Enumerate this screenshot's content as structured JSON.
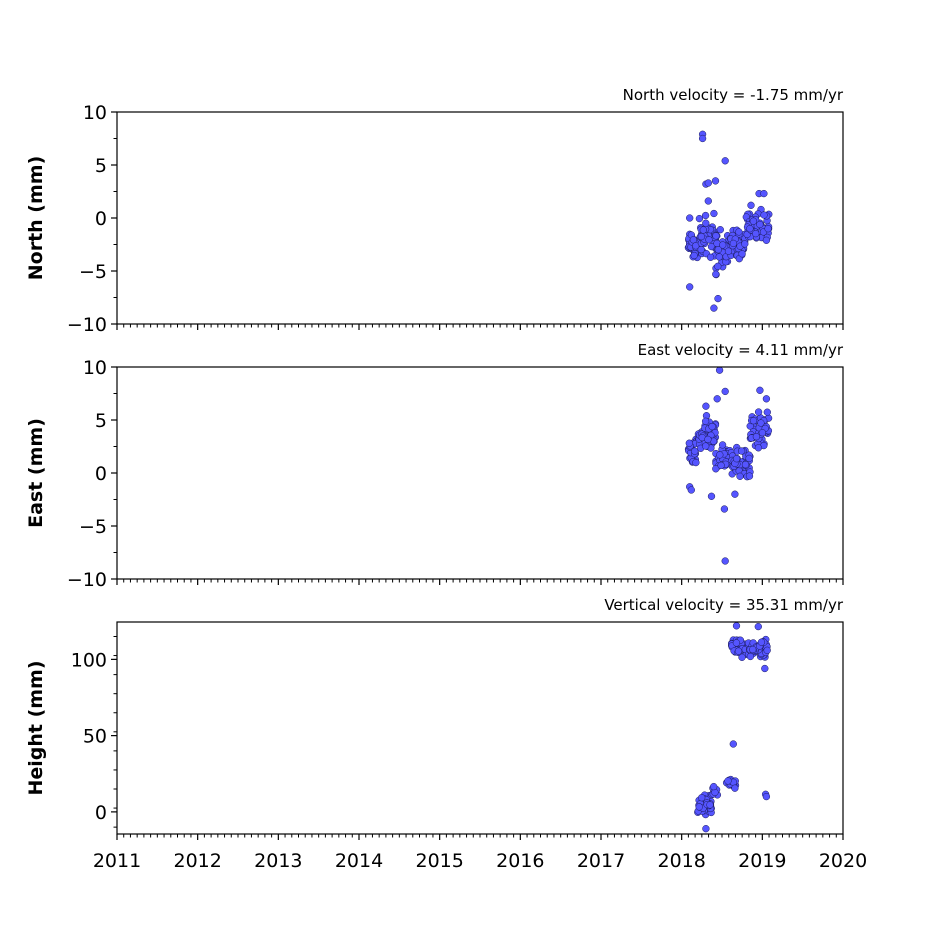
{
  "chart_data": [
    {
      "type": "scatter",
      "title": "North velocity = -1.75 mm/yr",
      "ylabel": "North (mm)",
      "xlim": [
        2011,
        2020
      ],
      "ylim": [
        -10,
        10
      ],
      "yticks": [
        -10,
        -5,
        0,
        5,
        10
      ],
      "ytick_labels": [
        "−10",
        "−5",
        "0",
        "5",
        "10"
      ],
      "marker_color": "#5555ff",
      "clusters": [
        {
          "x_range": [
            2018.08,
            2018.22
          ],
          "y_center": -2.6,
          "y_spread": 1.3,
          "count": 30
        },
        {
          "x_range": [
            2018.22,
            2018.42
          ],
          "y_center": -1.8,
          "y_spread": 1.8,
          "count": 50
        },
        {
          "x_range": [
            2018.42,
            2018.58
          ],
          "y_center": -3.2,
          "y_spread": 1.9,
          "count": 35
        },
        {
          "x_range": [
            2018.58,
            2018.8
          ],
          "y_center": -2.5,
          "y_spread": 1.2,
          "count": 45
        },
        {
          "x_range": [
            2018.8,
            2019.08
          ],
          "y_center": -0.8,
          "y_spread": 1.2,
          "count": 60
        }
      ],
      "points": [
        {
          "x": 2018.26,
          "y": 7.9
        },
        {
          "x": 2018.26,
          "y": 7.5
        },
        {
          "x": 2018.54,
          "y": 5.4
        },
        {
          "x": 2018.42,
          "y": 3.5
        },
        {
          "x": 2018.3,
          "y": 3.2
        },
        {
          "x": 2018.33,
          "y": 3.3
        },
        {
          "x": 2018.33,
          "y": 1.6
        },
        {
          "x": 2018.1,
          "y": -6.5
        },
        {
          "x": 2018.45,
          "y": -7.6
        },
        {
          "x": 2018.4,
          "y": -8.5
        },
        {
          "x": 2018.1,
          "y": 0.0
        },
        {
          "x": 2018.96,
          "y": 2.3
        },
        {
          "x": 2019.02,
          "y": 2.3
        },
        {
          "x": 2018.86,
          "y": 1.2
        },
        {
          "x": 2019.05,
          "y": -2.1
        }
      ]
    },
    {
      "type": "scatter",
      "title": "East velocity = 4.11 mm/yr",
      "ylabel": "East (mm)",
      "xlim": [
        2011,
        2020
      ],
      "ylim": [
        -10,
        10
      ],
      "yticks": [
        -10,
        -5,
        0,
        5,
        10
      ],
      "ytick_labels": [
        "−10",
        "−5",
        "0",
        "5",
        "10"
      ],
      "marker_color": "#5555ff",
      "clusters": [
        {
          "x_range": [
            2018.08,
            2018.2
          ],
          "y_center": 1.8,
          "y_spread": 1.2,
          "count": 25
        },
        {
          "x_range": [
            2018.2,
            2018.42
          ],
          "y_center": 3.6,
          "y_spread": 1.3,
          "count": 55
        },
        {
          "x_range": [
            2018.42,
            2018.62
          ],
          "y_center": 1.3,
          "y_spread": 1.1,
          "count": 40
        },
        {
          "x_range": [
            2018.62,
            2018.85
          ],
          "y_center": 0.9,
          "y_spread": 1.1,
          "count": 45
        },
        {
          "x_range": [
            2018.85,
            2019.08
          ],
          "y_center": 4.1,
          "y_spread": 1.4,
          "count": 55
        }
      ],
      "points": [
        {
          "x": 2018.47,
          "y": 9.7
        },
        {
          "x": 2018.54,
          "y": 7.7
        },
        {
          "x": 2018.97,
          "y": 7.8
        },
        {
          "x": 2019.05,
          "y": 7.0
        },
        {
          "x": 2018.44,
          "y": 7.0
        },
        {
          "x": 2018.3,
          "y": 6.3
        },
        {
          "x": 2018.54,
          "y": -8.3
        },
        {
          "x": 2018.53,
          "y": -3.4
        },
        {
          "x": 2018.37,
          "y": -2.2
        },
        {
          "x": 2018.1,
          "y": -1.3
        },
        {
          "x": 2018.12,
          "y": -1.6
        },
        {
          "x": 2018.66,
          "y": -2.0
        }
      ]
    },
    {
      "type": "scatter",
      "title": "Vertical velocity = 35.31 mm/yr",
      "ylabel": "Height (mm)",
      "xlim": [
        2011,
        2020
      ],
      "xticks": [
        2011,
        2012,
        2013,
        2014,
        2015,
        2016,
        2017,
        2018,
        2019,
        2020
      ],
      "xtick_labels": [
        "2011",
        "2012",
        "2013",
        "2014",
        "2015",
        "2016",
        "2017",
        "2018",
        "2019",
        "2020"
      ],
      "ylim": [
        -14.5,
        124.5
      ],
      "yticks": [
        0,
        50,
        100
      ],
      "ytick_labels": [
        "0",
        "50",
        "100"
      ],
      "marker_color": "#5555ff",
      "clusters": [
        {
          "x_range": [
            2018.2,
            2018.37
          ],
          "y_center": 4.5,
          "y_spread": 4.5,
          "count": 40
        },
        {
          "x_range": [
            2018.37,
            2018.45
          ],
          "y_center": 14.0,
          "y_spread": 4.0,
          "count": 10
        },
        {
          "x_range": [
            2018.55,
            2018.68
          ],
          "y_center": 19.0,
          "y_spread": 3.5,
          "count": 14
        },
        {
          "x_range": [
            2018.62,
            2018.82
          ],
          "y_center": 108.0,
          "y_spread": 5.0,
          "count": 40
        },
        {
          "x_range": [
            2018.82,
            2019.07
          ],
          "y_center": 107.0,
          "y_spread": 5.5,
          "count": 55
        }
      ],
      "points": [
        {
          "x": 2018.64,
          "y": 44.5
        },
        {
          "x": 2018.3,
          "y": -11.0
        },
        {
          "x": 2019.04,
          "y": 11.5
        },
        {
          "x": 2019.05,
          "y": 10.0
        },
        {
          "x": 2018.68,
          "y": 122.0
        },
        {
          "x": 2018.95,
          "y": 121.5
        },
        {
          "x": 2019.03,
          "y": 94.0
        }
      ]
    }
  ]
}
